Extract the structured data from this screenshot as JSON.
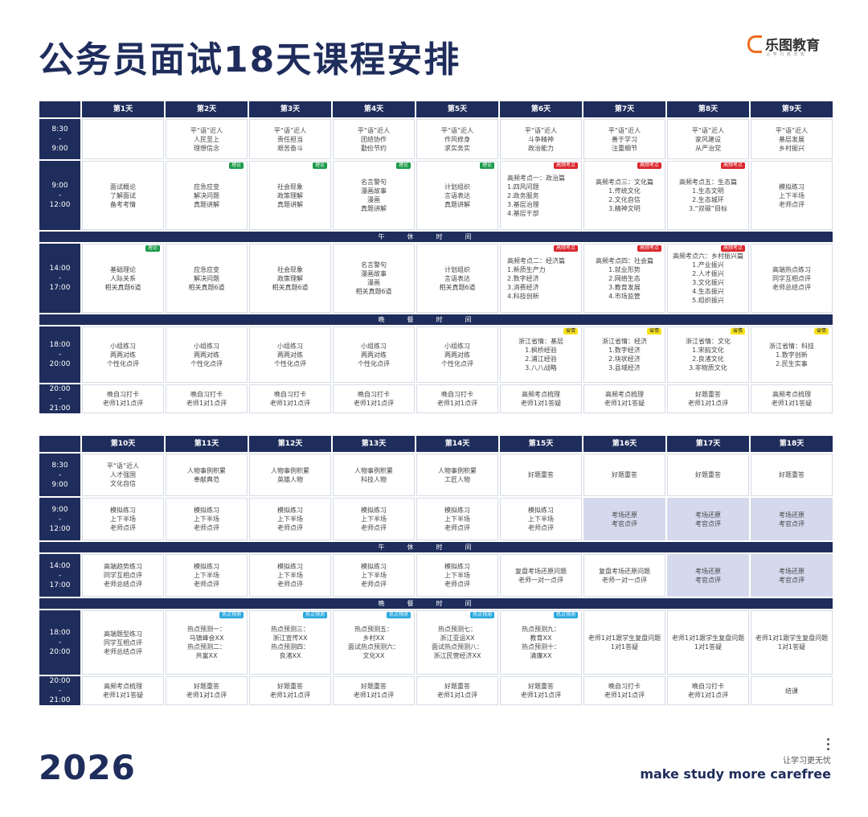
{
  "title": "公务员面试18天课程安排",
  "logo": {
    "name": "乐图教育",
    "sub": "让 学 习 更 无 忧"
  },
  "year": "2026",
  "slogan_cn": "让学习更无忧",
  "slogan_en": "make study more carefree",
  "colors": {
    "navy": "#1f2d5c",
    "green_tag": "#1b9a4a",
    "red_tag": "#d9262c",
    "yellow_tag": "#f7e11b",
    "blue_tag": "#29a8e0",
    "highlight": "#d4d9ee",
    "logo_orange": "#f26b1f"
  },
  "tables": [
    {
      "days": [
        "第1天",
        "第2天",
        "第3天",
        "第4天",
        "第5天",
        "第6天",
        "第7天",
        "第8天",
        "第9天"
      ],
      "rows": [
        {
          "time": "8:30\n-\n9:00",
          "cells": [
            {
              "text": ""
            },
            {
              "text": "平“语”近人\n人民至上\n理想信念"
            },
            {
              "text": "平“语”近人\n责任担当\n艰苦奋斗"
            },
            {
              "text": "平“语”近人\n团结协作\n勤俭节约"
            },
            {
              "text": "平“语”近人\n作风修身\n求实务实"
            },
            {
              "text": "平“语”近人\n斗争精神\n政治能力"
            },
            {
              "text": "平“语”近人\n善于学习\n注重细节"
            },
            {
              "text": "平“语”近人\n家风建设\n从严治党"
            },
            {
              "text": "平“语”近人\n基层发展\n乡村振兴"
            }
          ]
        },
        {
          "time": "9:00\n-\n12:00",
          "cells": [
            {
              "text": "面试概论\n了解面试\n备考考情"
            },
            {
              "text": "应急应变\n解决问题\n真题讲解",
              "tag": "理论",
              "tag_color": "green"
            },
            {
              "text": "社会现象\n政策理解\n真题讲解",
              "tag": "理论",
              "tag_color": "green"
            },
            {
              "text": "名言警句\n漫画故事\n漫画\n真题讲解",
              "tag": "理论",
              "tag_color": "green"
            },
            {
              "text": "计划组织\n言语表达\n真题讲解",
              "tag": "理论",
              "tag_color": "green"
            },
            {
              "text": "高频考点一：政治篇\n1.四风问题\n2.政务服务\n3.基层治理\n4.基层干部",
              "tag": "高频考点",
              "tag_color": "red",
              "align": "left"
            },
            {
              "text": "高频考点三：文化篇\n1.传统文化\n2.文化自信\n3.精神文明",
              "tag": "高频考点",
              "tag_color": "red"
            },
            {
              "text": "高频考点五：生态篇\n1.生态文明\n2.生态城环\n3.“双碳”目标",
              "tag": "高频考点",
              "tag_color": "red"
            },
            {
              "text": "模拟练习\n上下半场\n老师点评"
            }
          ]
        },
        {
          "break": "午休时间"
        },
        {
          "time": "14:00\n-\n17:00",
          "cells": [
            {
              "text": "基础理论\n人际关系\n相关真题6道",
              "tag": "理论",
              "tag_color": "green"
            },
            {
              "text": "应急应变\n解决问题\n相关真题6道"
            },
            {
              "text": "社会现象\n政策理解\n相关真题6道"
            },
            {
              "text": "名言警句\n漫画故事\n漫画\n相关真题6道"
            },
            {
              "text": "计划组织\n言语表达\n相关真题6道"
            },
            {
              "text": "高频考点二：经济篇\n1.新质生产力\n2.数字经济\n3.消费经济\n4.科技创新",
              "tag": "高频考点",
              "tag_color": "red",
              "align": "left"
            },
            {
              "text": "高频考点四：社会篇\n1.就业形势\n2.网络生态\n3.教育发展\n4.市场监管",
              "tag": "高频考点",
              "tag_color": "red"
            },
            {
              "text": "高频考点六：乡村振兴篇\n1.产业振兴\n2.人才振兴\n3.文化振兴\n4.生态振兴\n5.组织振兴",
              "tag": "高频考点",
              "tag_color": "red"
            },
            {
              "text": "高端热点练习\n同学互相点评\n老师总结点评"
            }
          ]
        },
        {
          "break": "晚餐时间"
        },
        {
          "time": "18:00\n-\n20:00",
          "cells": [
            {
              "text": "小组练习\n两两对练\n个性化点评"
            },
            {
              "text": "小组练习\n两两对练\n个性化点评"
            },
            {
              "text": "小组练习\n两两对练\n个性化点评"
            },
            {
              "text": "小组练习\n两两对练\n个性化点评"
            },
            {
              "text": "小组练习\n两两对练\n个性化点评"
            },
            {
              "text": "浙江省情：基层\n1.枫桥经验\n2.浦江经验\n3.八八战略",
              "tag": "省情",
              "tag_color": "yellow"
            },
            {
              "text": "浙江省情：经济\n1.数字经济\n2.块状经济\n3.县域经济",
              "tag": "省情",
              "tag_color": "yellow"
            },
            {
              "text": "浙江省情：文化\n1.宋韵文化\n2.良渚文化\n3.非物质文化",
              "tag": "省情",
              "tag_color": "yellow"
            },
            {
              "text": "浙江省情：科技\n1.数字创新\n2.民生实事",
              "tag": "省情",
              "tag_color": "yellow"
            }
          ]
        },
        {
          "time": "20:00\n-\n21:00",
          "cells": [
            {
              "text": "晚自习打卡\n老师1对1点评"
            },
            {
              "text": "晚自习打卡\n老师1对1点评"
            },
            {
              "text": "晚自习打卡\n老师1对1点评"
            },
            {
              "text": "晚自习打卡\n老师1对1点评"
            },
            {
              "text": "晚自习打卡\n老师1对1点评"
            },
            {
              "text": "高频考点梳理\n老师1对1答疑"
            },
            {
              "text": "高频考点梳理\n老师1对1答疑"
            },
            {
              "text": "好题重答\n老师1对1点评"
            },
            {
              "text": "高频考点梳理\n老师1对1答疑"
            }
          ]
        }
      ]
    },
    {
      "days": [
        "第10天",
        "第11天",
        "第12天",
        "第13天",
        "第14天",
        "第15天",
        "第16天",
        "第17天",
        "第18天"
      ],
      "rows": [
        {
          "time": "8:30\n-\n9:00",
          "cells": [
            {
              "text": "平“语”近人\n人才强国\n文化自信"
            },
            {
              "text": "人物事例积累\n奉献典范"
            },
            {
              "text": "人物事例积累\n英雄人物"
            },
            {
              "text": "人物事例积累\n科技人物"
            },
            {
              "text": "人物事例积累\n工匠人物"
            },
            {
              "text": "好题重答"
            },
            {
              "text": "好题重答"
            },
            {
              "text": "好题重答"
            },
            {
              "text": "好题重答"
            }
          ]
        },
        {
          "time": "9:00\n-\n12:00",
          "cells": [
            {
              "text": "模拟练习\n上下半场\n老师点评"
            },
            {
              "text": "模拟练习\n上下半场\n老师点评"
            },
            {
              "text": "模拟练习\n上下半场\n老师点评"
            },
            {
              "text": "模拟练习\n上下半场\n老师点评"
            },
            {
              "text": "模拟练习\n上下半场\n老师点评"
            },
            {
              "text": "模拟练习\n上下半场\n老师点评"
            },
            {
              "text": "考场还原\n考官点评",
              "hl": true
            },
            {
              "text": "考场还原\n考官点评",
              "hl": true
            },
            {
              "text": "考场还原\n考官点评",
              "hl": true
            }
          ]
        },
        {
          "break": "午休时间"
        },
        {
          "time": "14:00\n-\n17:00",
          "cells": [
            {
              "text": "高端趋势练习\n同学互相点评\n老师总结点评"
            },
            {
              "text": "模拟练习\n上下半场\n老师点评"
            },
            {
              "text": "模拟练习\n上下半场\n老师点评"
            },
            {
              "text": "模拟练习\n上下半场\n老师点评"
            },
            {
              "text": "模拟练习\n上下半场\n老师点评"
            },
            {
              "text": "复盘考场还原问题\n老师一对一点评"
            },
            {
              "text": "复盘考场还原问题\n老师一对一点评"
            },
            {
              "text": "考场还原\n考官点评",
              "hl": true
            },
            {
              "text": "考场还原\n考官点评",
              "hl": true
            }
          ]
        },
        {
          "break": "晚餐时间"
        },
        {
          "time": "18:00\n-\n20:00",
          "cells": [
            {
              "text": "高端题型练习\n同学互相点评\n老师总结点评"
            },
            {
              "text": "热点预测一：\n乌镇峰会XX\n热点预测二：\n共富XX",
              "tag": "热点预测",
              "tag_color": "blue"
            },
            {
              "text": "热点预测三：\n浙江宣传XX\n热点预测四：\n良渚XX",
              "tag": "热点预测",
              "tag_color": "blue"
            },
            {
              "text": "热点预测五：\n乡村XX\n面试热点预测六：\n文化XX",
              "tag": "热点预测",
              "tag_color": "blue"
            },
            {
              "text": "热点预测七：\n浙江亚运XX\n面试热点预测八：\n浙江民营经济XX",
              "tag": "热点预测",
              "tag_color": "blue"
            },
            {
              "text": "热点预测九：\n教育XX\n热点预测十：\n清廉XX",
              "tag": "热点预测",
              "tag_color": "blue"
            },
            {
              "text": "老师1对1跟学生复盘问题\n1对1答疑"
            },
            {
              "text": "老师1对1跟学生复盘问题\n1对1答疑"
            },
            {
              "text": "老师1对1跟学生复盘问题\n1对1答疑"
            }
          ]
        },
        {
          "time": "20:00\n-\n21:00",
          "cells": [
            {
              "text": "高频考点梳理\n老师1对1答疑"
            },
            {
              "text": "好题重答\n老师1对1点评"
            },
            {
              "text": "好题重答\n老师1对1点评"
            },
            {
              "text": "好题重答\n老师1对1点评"
            },
            {
              "text": "好题重答\n老师1对1点评"
            },
            {
              "text": "好题重答\n老师1对1点评"
            },
            {
              "text": "晚自习打卡\n老师1对1点评"
            },
            {
              "text": "晚自习打卡\n老师1对1点评"
            },
            {
              "text": "结课"
            }
          ]
        }
      ]
    }
  ]
}
